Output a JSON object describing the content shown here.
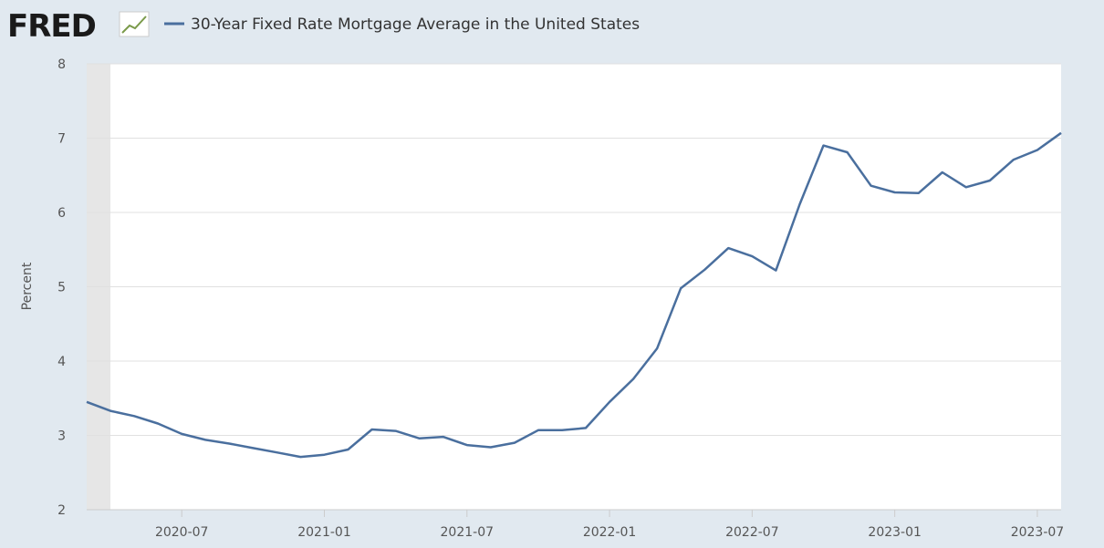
{
  "logo": "FRED",
  "chart_data": {
    "type": "line",
    "title": "30-Year Fixed Rate Mortgage Average in the United States",
    "y_label": "Percent",
    "x": [
      "2020-03",
      "2020-04",
      "2020-05",
      "2020-06",
      "2020-07",
      "2020-08",
      "2020-09",
      "2020-10",
      "2020-11",
      "2020-12",
      "2021-01",
      "2021-02",
      "2021-03",
      "2021-04",
      "2021-05",
      "2021-06",
      "2021-07",
      "2021-08",
      "2021-09",
      "2021-10",
      "2021-11",
      "2021-12",
      "2022-01",
      "2022-02",
      "2022-03",
      "2022-04",
      "2022-05",
      "2022-06",
      "2022-07",
      "2022-08",
      "2022-09",
      "2022-10",
      "2022-11",
      "2022-12",
      "2023-01",
      "2023-02",
      "2023-03",
      "2023-04",
      "2023-05",
      "2023-06",
      "2023-07",
      "2023-08"
    ],
    "series": [
      {
        "name": "30-Year Fixed Rate Mortgage Average in the United States",
        "color": "#4a6f9e",
        "values": [
          3.45,
          3.33,
          3.26,
          3.16,
          3.02,
          2.94,
          2.89,
          2.83,
          2.77,
          2.71,
          2.74,
          2.81,
          3.08,
          3.06,
          2.96,
          2.98,
          2.87,
          2.84,
          2.9,
          3.07,
          3.07,
          3.1,
          3.45,
          3.76,
          4.17,
          4.98,
          5.23,
          5.52,
          5.41,
          5.22,
          6.11,
          6.9,
          6.81,
          6.36,
          6.27,
          6.26,
          6.54,
          6.34,
          6.43,
          6.71,
          6.84,
          7.07
        ]
      }
    ],
    "xlim": [
      "2020-03",
      "2023-08"
    ],
    "xticks": [
      "2020-07",
      "2021-01",
      "2021-07",
      "2022-01",
      "2022-07",
      "2023-01",
      "2023-07"
    ],
    "ylim": [
      2,
      8
    ],
    "yticks": [
      2,
      3,
      4,
      5,
      6,
      7,
      8
    ],
    "grid": true,
    "recession": [
      "2020-03",
      "2020-04"
    ]
  }
}
